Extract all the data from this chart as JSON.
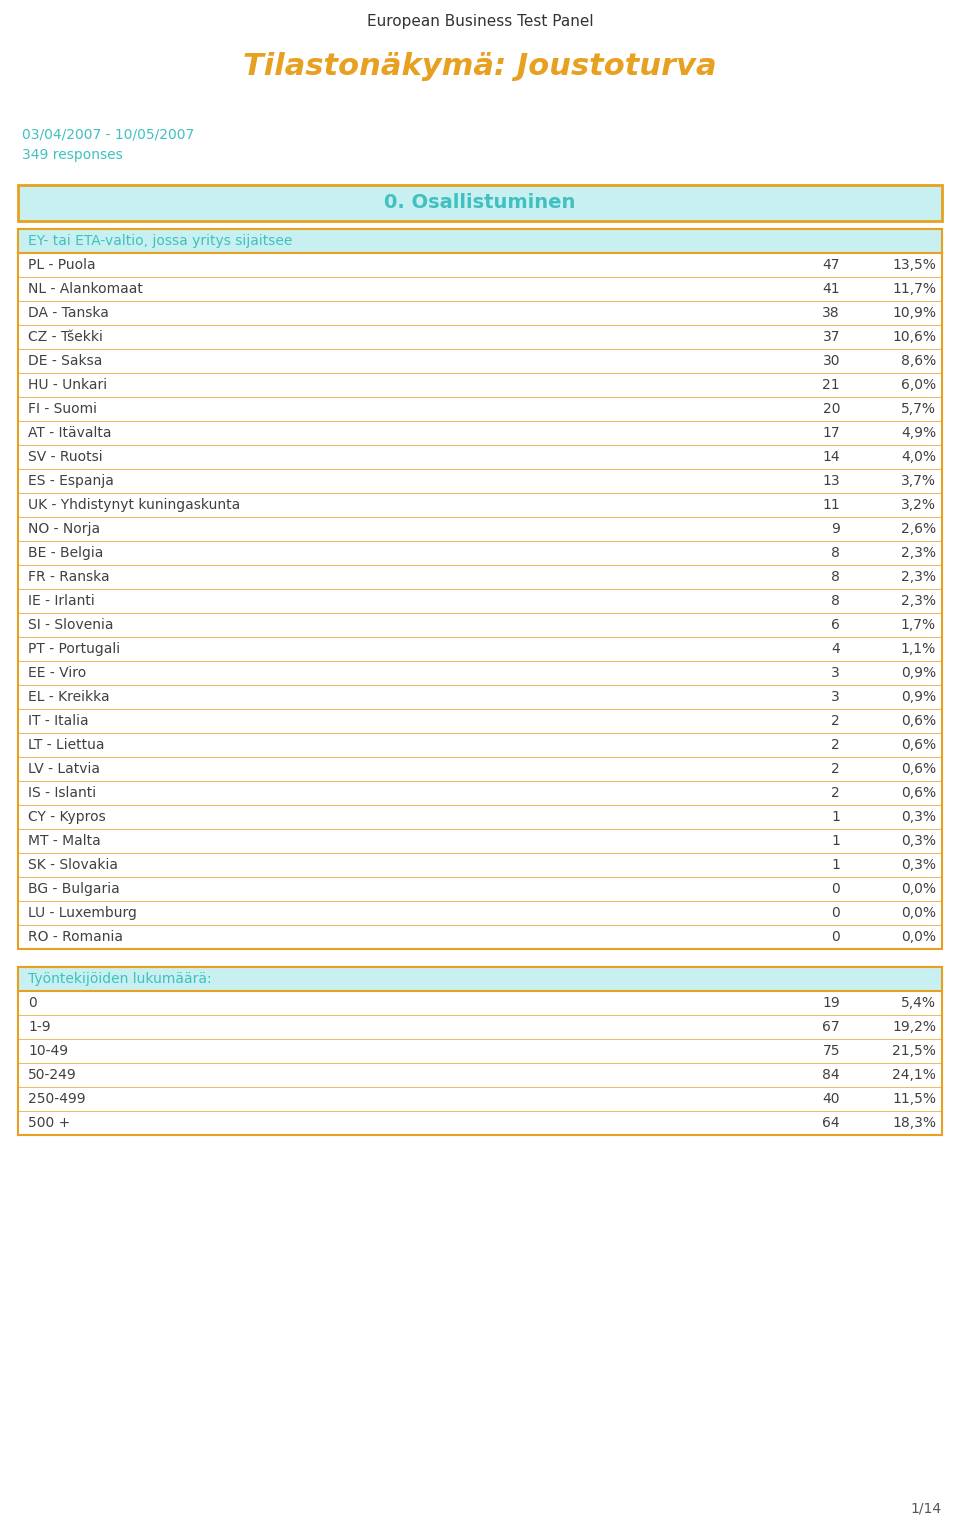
{
  "header_top": "European Business Test Panel",
  "title": "Tilastonäkymä: Joustoturva",
  "date_range": "03/04/2007 - 10/05/2007",
  "responses": "349 responses",
  "section_title": "0. Osallistuminen",
  "table1_header": "EY- tai ETA-valtio, jossa yritys sijaitsee",
  "table1_rows": [
    [
      "PL - Puola",
      "47",
      "13,5%"
    ],
    [
      "NL - Alankomaat",
      "41",
      "11,7%"
    ],
    [
      "DA - Tanska",
      "38",
      "10,9%"
    ],
    [
      "CZ - Tšekki",
      "37",
      "10,6%"
    ],
    [
      "DE - Saksa",
      "30",
      "8,6%"
    ],
    [
      "HU - Unkari",
      "21",
      "6,0%"
    ],
    [
      "FI - Suomi",
      "20",
      "5,7%"
    ],
    [
      "AT - Itävalta",
      "17",
      "4,9%"
    ],
    [
      "SV - Ruotsi",
      "14",
      "4,0%"
    ],
    [
      "ES - Espanja",
      "13",
      "3,7%"
    ],
    [
      "UK - Yhdistynyt kuningaskunta",
      "11",
      "3,2%"
    ],
    [
      "NO - Norja",
      "9",
      "2,6%"
    ],
    [
      "BE - Belgia",
      "8",
      "2,3%"
    ],
    [
      "FR - Ranska",
      "8",
      "2,3%"
    ],
    [
      "IE - Irlanti",
      "8",
      "2,3%"
    ],
    [
      "SI - Slovenia",
      "6",
      "1,7%"
    ],
    [
      "PT - Portugali",
      "4",
      "1,1%"
    ],
    [
      "EE - Viro",
      "3",
      "0,9%"
    ],
    [
      "EL - Kreikka",
      "3",
      "0,9%"
    ],
    [
      "IT - Italia",
      "2",
      "0,6%"
    ],
    [
      "LT - Liettua",
      "2",
      "0,6%"
    ],
    [
      "LV - Latvia",
      "2",
      "0,6%"
    ],
    [
      "IS - Islanti",
      "2",
      "0,6%"
    ],
    [
      "CY - Kypros",
      "1",
      "0,3%"
    ],
    [
      "MT - Malta",
      "1",
      "0,3%"
    ],
    [
      "SK - Slovakia",
      "1",
      "0,3%"
    ],
    [
      "BG - Bulgaria",
      "0",
      "0,0%"
    ],
    [
      "LU - Luxemburg",
      "0",
      "0,0%"
    ],
    [
      "RO - Romania",
      "0",
      "0,0%"
    ]
  ],
  "table2_header": "Työntekijöiden lukumäärä:",
  "table2_rows": [
    [
      "0",
      "19",
      "5,4%"
    ],
    [
      "1-9",
      "67",
      "19,2%"
    ],
    [
      "10-49",
      "75",
      "21,5%"
    ],
    [
      "50-249",
      "84",
      "24,1%"
    ],
    [
      "250-499",
      "40",
      "11,5%"
    ],
    [
      "500 +",
      "64",
      "18,3%"
    ]
  ],
  "page_label": "1/14",
  "color_orange": "#E8A020",
  "color_teal_header": "#40C0C0",
  "color_teal_light": "#C8F0F0",
  "color_teal_text": "#40C0C0",
  "color_orange_title": "#E8A020",
  "color_table_text": "#404040",
  "color_border": "#E8A020",
  "bg_color": "#FFFFFF",
  "figwidth": 9.6,
  "figheight": 15.34,
  "dpi": 100
}
